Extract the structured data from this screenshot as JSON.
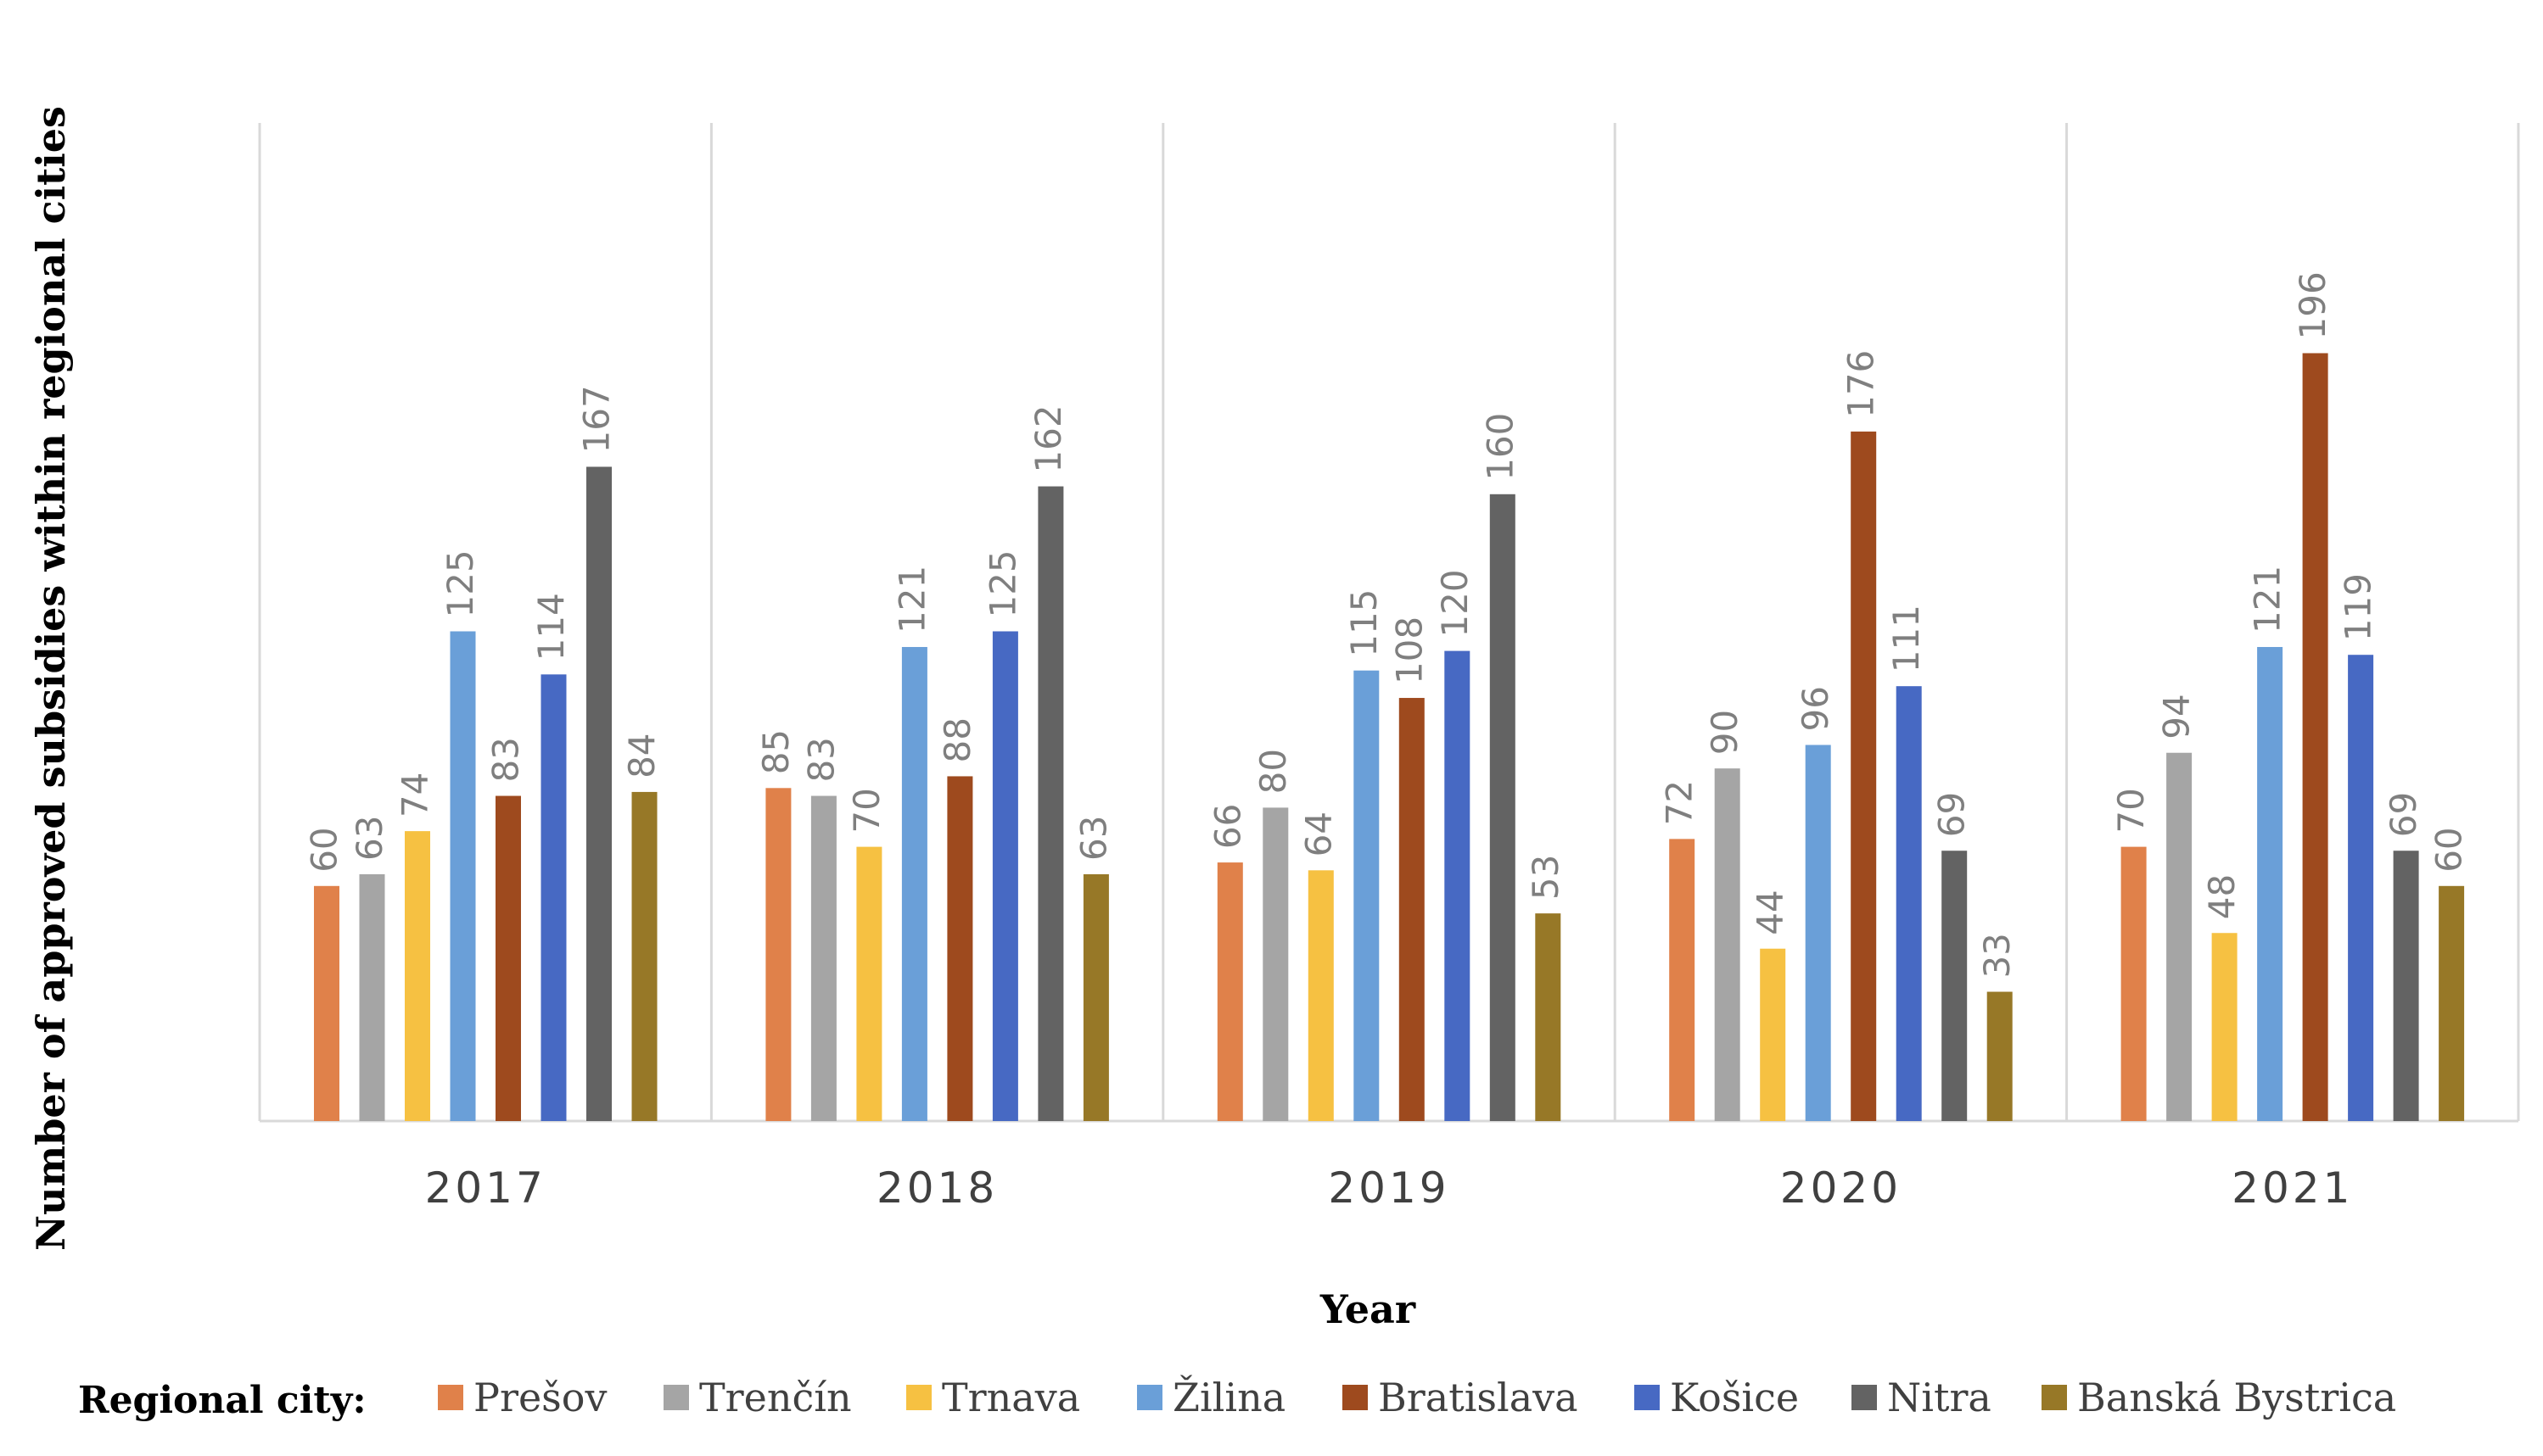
{
  "chart_data": {
    "type": "bar",
    "title": "",
    "xlabel": "Year",
    "ylabel": "Number of approved subsidies within regional cities",
    "ylim": [
      0,
      240
    ],
    "grid": "vertical separators between year groups",
    "categories": [
      "2017",
      "2018",
      "2019",
      "2020",
      "2021"
    ],
    "legend_title": "Regional city:",
    "legend_position": "bottom",
    "series": [
      {
        "name": "Prešov",
        "color": "#E0814A",
        "values": [
          60,
          85,
          66,
          72,
          70
        ]
      },
      {
        "name": "Trenčín",
        "color": "#A5A5A5",
        "values": [
          63,
          83,
          80,
          90,
          94
        ]
      },
      {
        "name": "Trnava",
        "color": "#F6C142",
        "values": [
          74,
          70,
          64,
          44,
          48
        ]
      },
      {
        "name": "Žilina",
        "color": "#6A9FD8",
        "values": [
          125,
          121,
          115,
          96,
          121
        ]
      },
      {
        "name": "Bratislava",
        "color": "#9E4A1E",
        "values": [
          83,
          88,
          108,
          176,
          196
        ]
      },
      {
        "name": "Košice",
        "color": "#4769C3",
        "values": [
          114,
          125,
          120,
          111,
          119
        ]
      },
      {
        "name": "Nitra",
        "color": "#636363",
        "values": [
          167,
          162,
          160,
          69,
          69
        ]
      },
      {
        "name": "Banská Bystrica",
        "color": "#977827",
        "values": [
          84,
          63,
          53,
          33,
          60
        ]
      }
    ]
  }
}
